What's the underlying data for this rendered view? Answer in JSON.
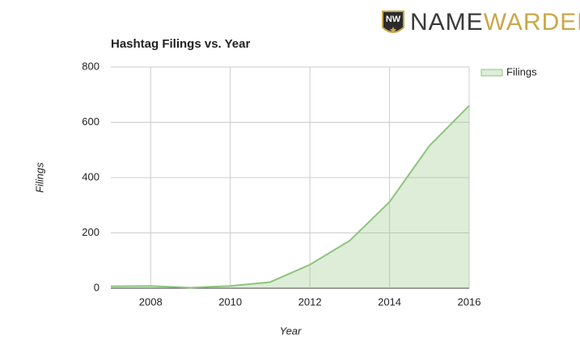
{
  "logo": {
    "badge": "NW",
    "name_left": "NAME",
    "name_right": "WARDEN"
  },
  "chart_data": {
    "type": "area",
    "title": "Hashtag Filings vs. Year",
    "x_label": "Year",
    "y_label": "Filings",
    "x": [
      2007,
      2008,
      2009,
      2010,
      2011,
      2012,
      2013,
      2014,
      2015,
      2016
    ],
    "series": [
      {
        "name": "Filings",
        "color": "#8fc47d",
        "values": [
          7,
          8,
          2,
          8,
          22,
          85,
          172,
          312,
          515,
          660
        ]
      }
    ],
    "xlim": [
      2007,
      2016
    ],
    "xticks": [
      2008,
      2010,
      2012,
      2014,
      2016
    ],
    "ylim": [
      0,
      800
    ],
    "yticks": [
      0,
      200,
      400,
      600,
      800
    ],
    "grid": true,
    "legend": "right"
  }
}
